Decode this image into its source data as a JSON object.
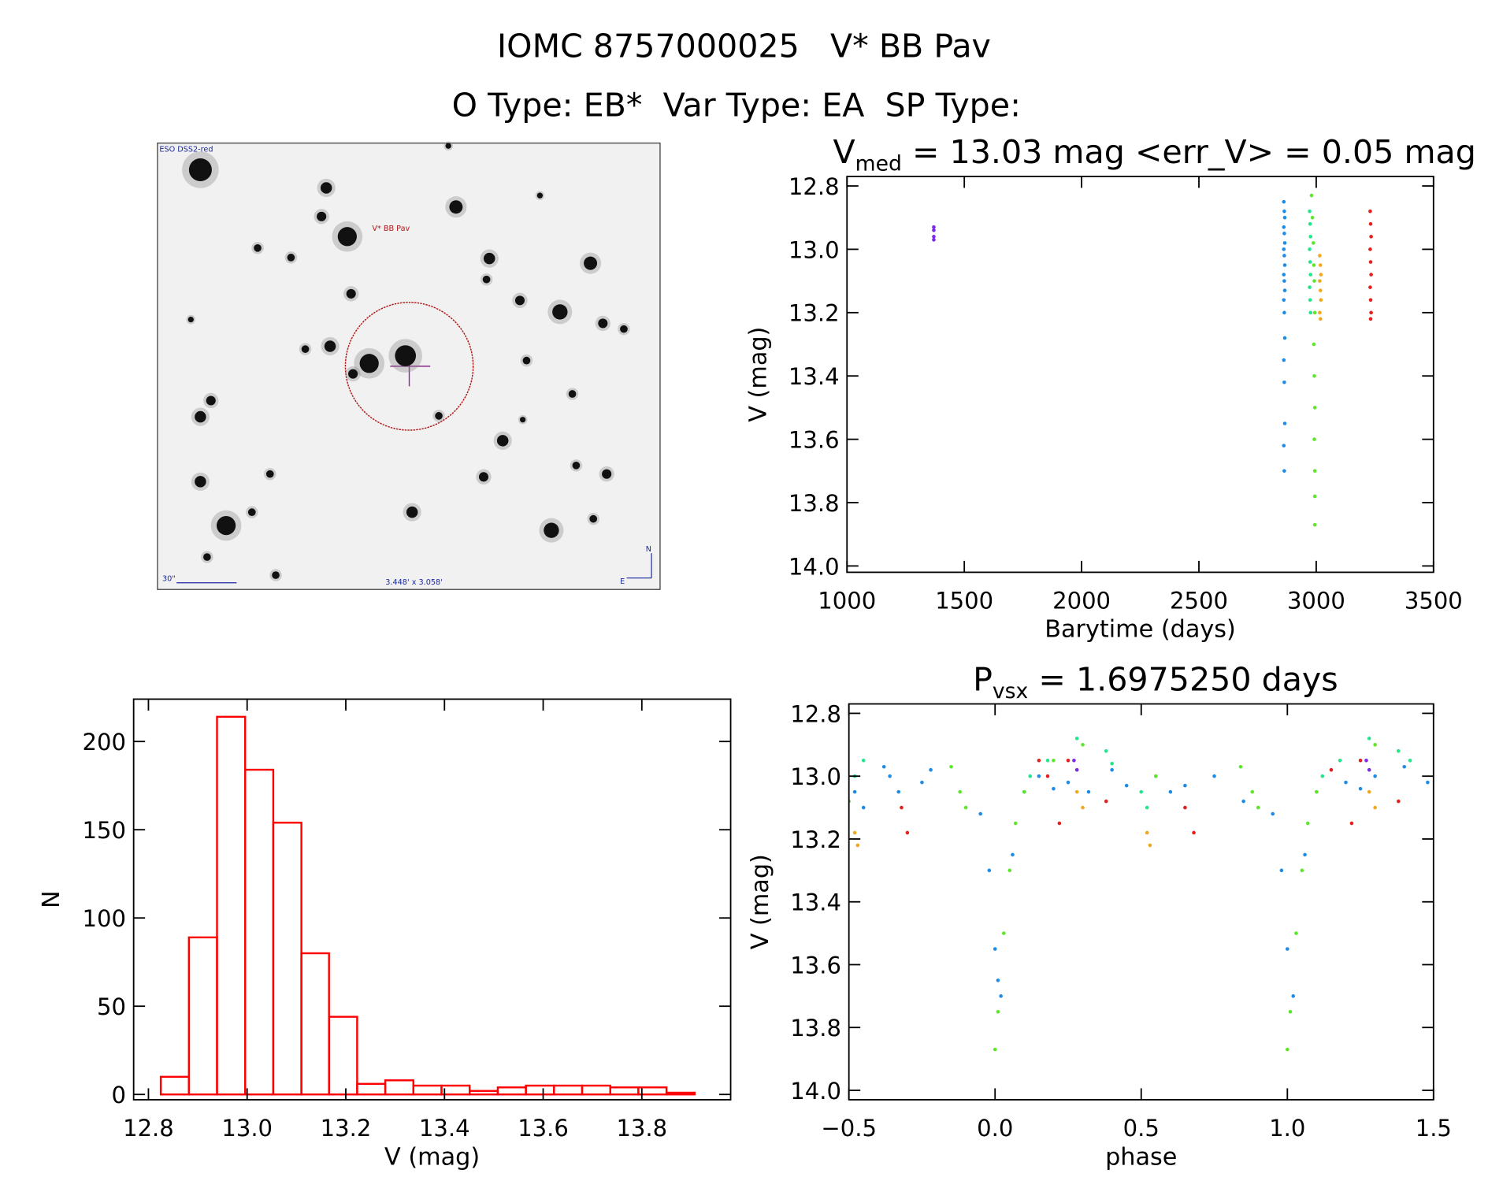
{
  "header": {
    "title": "IOMC 8757000025   V* BB Pav",
    "subtitle": "O Type: EB*  Var Type: EA  SP Type:"
  },
  "image": {
    "survey": "ESO DSS2-red",
    "target": "V* BB Pav",
    "scale": "30\"",
    "size": "3.448' x 3.058'",
    "north": "N",
    "east": "E"
  },
  "chart_data": [
    {
      "type": "scatter",
      "title": {
        "main": "V",
        "sub": "med",
        "rest": " = 13.03 mag <err_V> = 0.05 mag"
      },
      "x_label": "Barytime (days)",
      "y_label": "V (mag)",
      "xlim": [
        1000,
        3500
      ],
      "xticks": [
        1000,
        1500,
        2000,
        2500,
        3000,
        3500
      ],
      "ylim": [
        12.77,
        14.02
      ],
      "y_inverted": true,
      "yticks": [
        12.8,
        {
          "value": 13,
          "label": "13.0"
        },
        13.2,
        13.4,
        13.6,
        13.8,
        {
          "value": 14,
          "label": "14.0"
        }
      ],
      "series": [
        {
          "color": "#7a2ae6",
          "x": [
            1370,
            1370,
            1370,
            1370
          ],
          "values": [
            12.93,
            12.94,
            12.96,
            12.97
          ]
        },
        {
          "color": "#1e8ce6",
          "x": [
            2862,
            2864,
            2866,
            2862,
            2864,
            2866,
            2862,
            2864,
            2866,
            2862,
            2864,
            2866,
            2862,
            2864,
            2866,
            2862,
            2864,
            2866,
            2862,
            2864
          ],
          "values": [
            12.85,
            12.88,
            12.9,
            12.93,
            12.95,
            12.98,
            13.0,
            13.02,
            13.05,
            13.08,
            13.1,
            13.13,
            13.16,
            13.2,
            13.28,
            13.35,
            13.42,
            13.55,
            13.62,
            13.7
          ]
        },
        {
          "color": "#22e68c",
          "x": [
            2972,
            2974,
            2976,
            2972,
            2974,
            2976,
            2972,
            2974,
            2976
          ],
          "values": [
            12.88,
            12.92,
            12.96,
            13.0,
            13.04,
            13.08,
            13.12,
            13.16,
            13.2
          ]
        },
        {
          "color": "#5ee62a",
          "x": [
            2980,
            2984,
            2988,
            2990,
            2992,
            2994,
            2990,
            2992,
            2994,
            2992,
            2994,
            2994,
            2994
          ],
          "values": [
            12.83,
            12.9,
            12.98,
            13.05,
            13.1,
            13.2,
            13.3,
            13.4,
            13.5,
            13.6,
            13.7,
            13.78,
            13.87
          ]
        },
        {
          "color": "#f0a81e",
          "x": [
            3015,
            3018,
            3020,
            3015,
            3018,
            3020,
            3015,
            3018
          ],
          "values": [
            13.02,
            13.05,
            13.08,
            13.1,
            13.13,
            13.16,
            13.2,
            13.22
          ]
        },
        {
          "color": "#e61e1e",
          "x": [
            3230,
            3232,
            3234,
            3230,
            3232,
            3234,
            3230,
            3232,
            3234,
            3232
          ],
          "values": [
            12.88,
            12.92,
            12.96,
            13.0,
            13.04,
            13.08,
            13.12,
            13.16,
            13.2,
            13.22
          ]
        }
      ]
    },
    {
      "type": "histogram",
      "x_label": "V (mag)",
      "y_label": "N",
      "color": "#ff0000",
      "bins": [
        12.825,
        12.882,
        12.939,
        12.996,
        13.053,
        13.11,
        13.166,
        13.223,
        13.28,
        13.337,
        13.394,
        13.451,
        13.508,
        13.565,
        13.622,
        13.679,
        13.736,
        13.793,
        13.85,
        13.907
      ],
      "values": [
        10,
        89,
        214,
        184,
        154,
        80,
        44,
        6,
        8,
        5,
        5,
        2,
        4,
        5,
        5,
        5,
        4,
        4,
        1
      ],
      "xlim": [
        12.77,
        13.98
      ],
      "xticks": [
        12.8,
        {
          "value": 13,
          "label": "13.0"
        },
        13.2,
        13.4,
        13.6,
        13.8
      ],
      "ylim": [
        -3,
        224
      ],
      "yticks": [
        0,
        50,
        100,
        150,
        200
      ]
    },
    {
      "type": "scatter",
      "title": {
        "main": "P",
        "sub": "vsx",
        "rest": " = 1.6975250 days"
      },
      "x_label": "phase",
      "y_label": "V (mag)",
      "xlim": [
        -0.5,
        1.5
      ],
      "xticks": [
        {
          "value": -0.5,
          "label": "−0.5"
        },
        {
          "value": 0,
          "label": "0.0"
        },
        0.5,
        {
          "value": 1,
          "label": "1.0"
        },
        1.5
      ],
      "ylim": [
        12.77,
        14.03
      ],
      "y_inverted": true,
      "yticks": [
        12.8,
        {
          "value": 13,
          "label": "13.0"
        },
        13.2,
        13.4,
        13.6,
        13.8,
        {
          "value": 14,
          "label": "14.0"
        }
      ],
      "series": [
        {
          "color": "#7a2ae6",
          "x": [
            0.27,
            0.28,
            1.27,
            1.28
          ],
          "values": [
            12.95,
            12.98,
            12.95,
            12.98
          ]
        },
        {
          "color": "#1e8ce6",
          "x": [
            -0.48,
            -0.45,
            -0.38,
            -0.36,
            -0.33,
            -0.25,
            -0.22,
            -0.05,
            -0.02,
            0,
            0.01,
            0.02,
            0.06,
            0.1,
            0.15,
            0.2,
            0.25,
            0.32,
            0.4,
            0.45,
            0.55,
            0.6,
            0.65,
            0.75,
            0.85,
            0.95,
            0.98,
            1,
            1.02,
            1.06,
            1.1,
            1.2,
            1.25,
            1.3,
            1.4,
            1.48
          ],
          "values": [
            13.05,
            13.1,
            12.97,
            13.0,
            13.05,
            13.02,
            12.98,
            13.12,
            13.3,
            13.55,
            13.65,
            13.7,
            13.25,
            13.05,
            13.0,
            13.04,
            13.02,
            13.05,
            12.98,
            13.03,
            13.0,
            13.05,
            13.03,
            13.0,
            13.08,
            13.12,
            13.3,
            13.55,
            13.7,
            13.25,
            13.05,
            13.02,
            13.04,
            13.0,
            12.97,
            13.02
          ]
        },
        {
          "color": "#22e68c",
          "x": [
            -0.48,
            -0.45,
            0.12,
            0.18,
            0.28,
            0.38,
            0.4,
            0.5,
            0.52,
            1.12,
            1.18,
            1.28,
            1.38,
            1.42
          ],
          "values": [
            13.0,
            12.95,
            13.0,
            12.95,
            12.88,
            12.92,
            12.96,
            13.05,
            13.1,
            13.0,
            12.95,
            12.88,
            12.92,
            12.95
          ]
        },
        {
          "color": "#5ee62a",
          "x": [
            -0.5,
            -0.15,
            -0.12,
            -0.1,
            0,
            0.01,
            0.03,
            0.05,
            0.07,
            0.1,
            0.2,
            0.3,
            0.55,
            0.84,
            0.88,
            0.9,
            1,
            1.01,
            1.03,
            1.05,
            1.07,
            1.1,
            1.3
          ],
          "values": [
            13.08,
            12.97,
            13.05,
            13.1,
            13.87,
            13.75,
            13.5,
            13.3,
            13.15,
            13.05,
            12.95,
            12.9,
            13.0,
            12.97,
            13.05,
            13.1,
            13.87,
            13.75,
            13.5,
            13.3,
            13.15,
            13.05,
            12.9
          ]
        },
        {
          "color": "#f0a81e",
          "x": [
            -0.48,
            -0.47,
            0.28,
            0.3,
            0.52,
            0.53,
            1.28,
            1.3
          ],
          "values": [
            13.18,
            13.22,
            13.05,
            13.1,
            13.18,
            13.22,
            13.05,
            13.1
          ]
        },
        {
          "color": "#e61e1e",
          "x": [
            -0.32,
            -0.3,
            0.15,
            0.18,
            0.22,
            0.25,
            0.38,
            0.65,
            0.68,
            1.15,
            1.22,
            1.25,
            1.38
          ],
          "values": [
            13.1,
            13.18,
            12.95,
            13.0,
            13.15,
            12.95,
            13.08,
            13.1,
            13.18,
            12.98,
            13.15,
            12.95,
            13.08
          ]
        }
      ]
    }
  ]
}
